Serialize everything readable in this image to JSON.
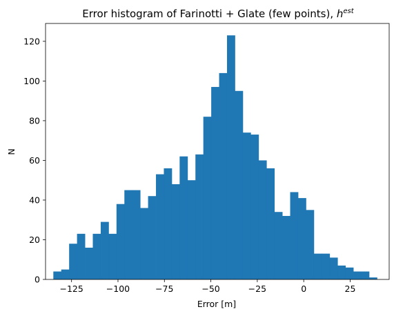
{
  "chart_data": {
    "type": "bar",
    "title_main": "Error histogram of Farinotti + Glate (few points), ",
    "title_math_base": "h",
    "title_math_sup": "est",
    "xlabel": "Error [m]",
    "ylabel": "N",
    "xlim": [
      -139,
      46
    ],
    "ylim": [
      0,
      129
    ],
    "xticks": [
      -125,
      -100,
      -75,
      -50,
      -25,
      0,
      25
    ],
    "xtick_labels": [
      "−125",
      "−100",
      "−75",
      "−50",
      "−25",
      "0",
      "25"
    ],
    "yticks": [
      0,
      20,
      40,
      60,
      80,
      100,
      120
    ],
    "ytick_labels": [
      "0",
      "20",
      "40",
      "60",
      "80",
      "100",
      "120"
    ],
    "bin_start": -134.8,
    "bin_width": 4.25,
    "values": [
      4,
      5,
      18,
      23,
      16,
      23,
      29,
      23,
      38,
      45,
      45,
      36,
      42,
      53,
      56,
      48,
      62,
      50,
      63,
      82,
      97,
      104,
      123,
      95,
      74,
      73,
      60,
      56,
      34,
      32,
      44,
      41,
      35,
      13,
      13,
      11,
      7,
      6,
      4,
      4,
      1
    ],
    "bar_color": "#1f77b4",
    "grid": false,
    "legend": "none"
  }
}
